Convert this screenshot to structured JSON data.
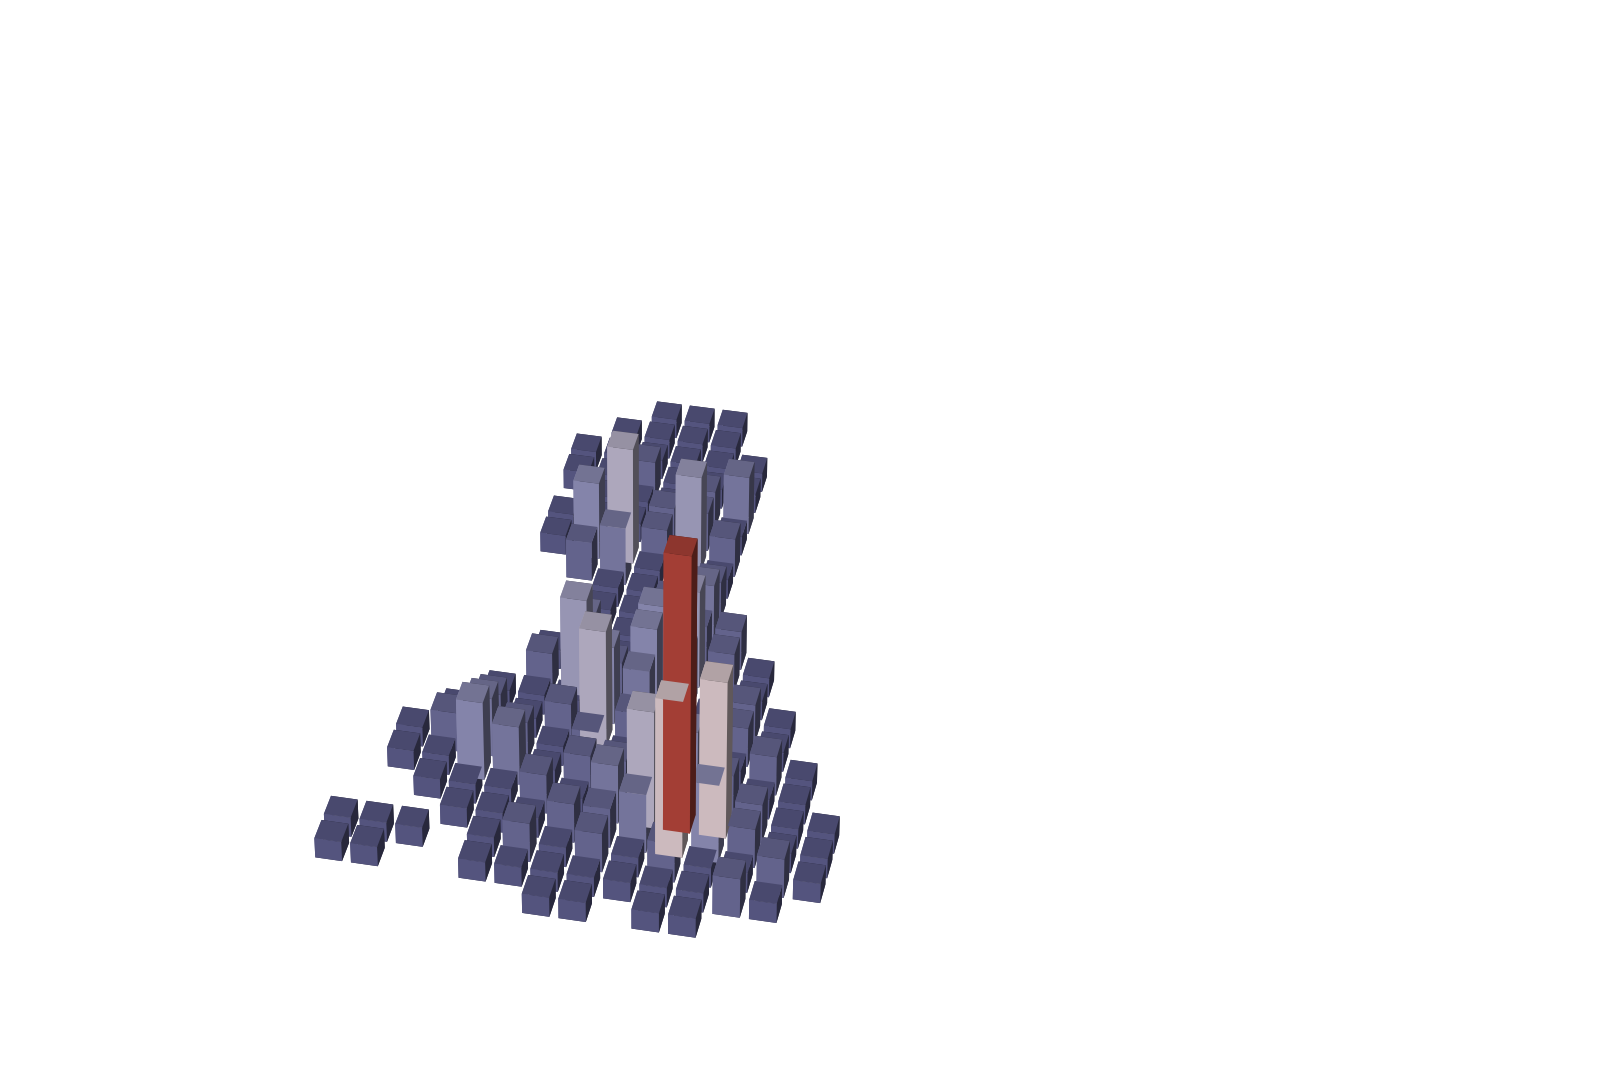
{
  "chart_data": {
    "type": "bar3d",
    "grid": false,
    "tick_labels": false,
    "cells": [
      [
        null,
        null,
        null,
        null,
        null,
        1,
        1,
        1,
        null,
        null,
        null,
        null,
        null,
        null
      ],
      [
        null,
        null,
        null,
        null,
        1,
        1,
        1,
        1,
        null,
        null,
        null,
        null,
        null,
        null
      ],
      [
        null,
        null,
        null,
        1,
        1,
        1,
        1,
        1,
        1,
        null,
        null,
        null,
        null,
        null
      ],
      [
        null,
        null,
        null,
        1,
        1,
        2,
        1,
        1,
        1,
        null,
        null,
        null,
        null,
        null
      ],
      [
        null,
        null,
        null,
        null,
        1,
        1,
        1,
        2,
        3,
        null,
        null,
        null,
        null,
        null
      ],
      [
        null,
        null,
        null,
        1,
        1,
        1,
        2,
        2,
        1,
        null,
        null,
        null,
        null,
        null
      ],
      [
        null,
        null,
        null,
        1,
        4,
        6,
        2,
        5,
        2,
        null,
        null,
        null,
        null,
        null
      ],
      [
        null,
        null,
        null,
        null,
        2,
        3,
        1,
        1,
        1,
        null,
        null,
        null,
        null,
        null
      ],
      [
        null,
        null,
        null,
        null,
        null,
        1,
        1,
        1,
        2,
        null,
        null,
        null,
        null,
        null
      ],
      [
        null,
        null,
        null,
        null,
        null,
        1,
        1,
        2,
        3,
        null,
        null,
        null,
        null,
        null
      ],
      [
        null,
        null,
        null,
        null,
        null,
        1,
        1,
        2,
        2,
        2,
        null,
        null,
        null,
        null
      ],
      [
        null,
        null,
        null,
        null,
        1,
        3,
        1,
        4,
        5,
        2,
        1,
        null,
        null,
        null
      ],
      [
        null,
        null,
        null,
        null,
        2,
        5,
        2,
        4,
        3,
        1,
        1,
        null,
        null,
        null
      ],
      [
        null,
        null,
        null,
        1,
        1,
        1,
        4,
        3,
        1,
        1,
        2,
        1,
        null,
        null
      ],
      [
        null,
        null,
        1,
        2,
        1,
        2,
        6,
        2,
        1,
        1,
        2,
        1,
        null,
        null
      ],
      [
        null,
        1,
        2,
        3,
        2,
        1,
        2,
        1,
        2,
        2,
        1,
        2,
        1,
        null
      ],
      [
        null,
        1,
        1,
        4,
        3,
        1,
        2,
        2,
        3,
        4,
        2,
        1,
        1,
        null
      ],
      [
        null,
        null,
        1,
        1,
        1,
        2,
        1,
        3,
        6,
        14,
        8,
        2,
        1,
        1
      ],
      [
        null,
        null,
        null,
        1,
        1,
        1,
        2,
        2,
        3,
        8,
        4,
        2,
        1,
        1
      ],
      [
        1,
        1,
        1,
        null,
        1,
        2,
        1,
        2,
        1,
        2,
        1,
        1,
        2,
        1
      ],
      [
        1,
        1,
        null,
        null,
        1,
        1,
        1,
        1,
        1,
        1,
        1,
        2,
        1,
        null
      ],
      [
        null,
        null,
        null,
        null,
        null,
        null,
        1,
        1,
        null,
        1,
        1,
        null,
        null,
        null
      ]
    ]
  }
}
